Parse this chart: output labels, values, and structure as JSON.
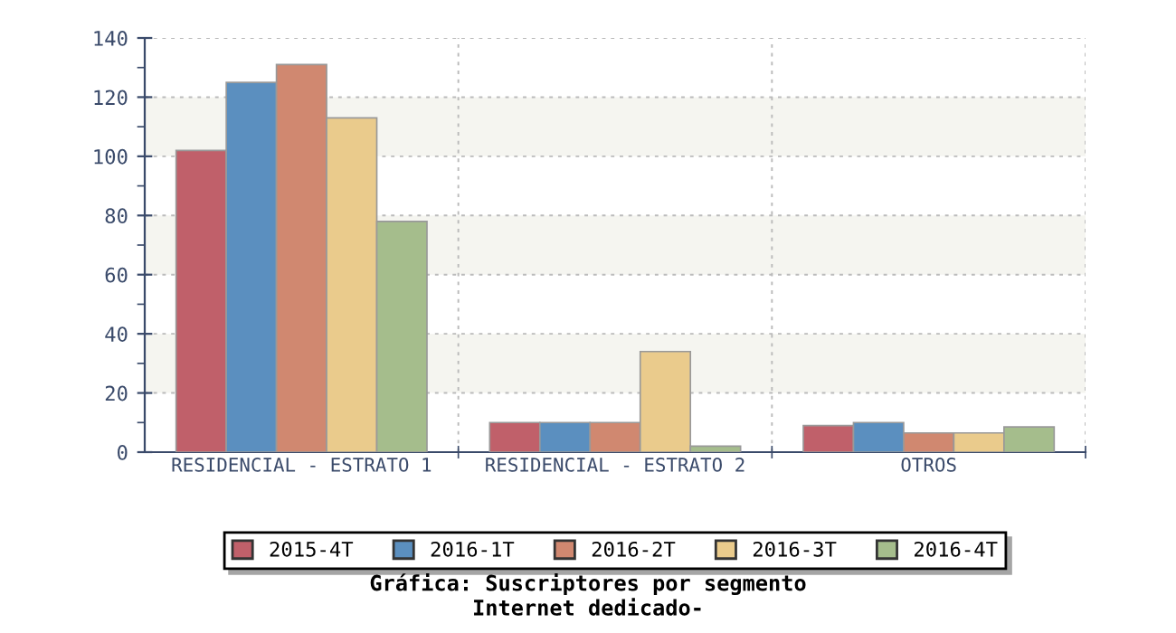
{
  "chart_data": {
    "type": "bar",
    "title": "Gráfica: Suscriptores por segmento",
    "subtitle": "Internet dedicado-",
    "categories": [
      "RESIDENCIAL - ESTRATO 1",
      "RESIDENCIAL - ESTRATO 2",
      "OTROS"
    ],
    "series": [
      {
        "name": "2015-4T",
        "color": "#c0606a",
        "values": [
          102,
          10,
          9
        ]
      },
      {
        "name": "2016-1T",
        "color": "#5b8fbf",
        "values": [
          125,
          10,
          10
        ]
      },
      {
        "name": "2016-2T",
        "color": "#d08870",
        "values": [
          131,
          10,
          6.5
        ]
      },
      {
        "name": "2016-3T",
        "color": "#eacb8c",
        "values": [
          113,
          34,
          6.5
        ]
      },
      {
        "name": "2016-4T",
        "color": "#a5bd8c",
        "values": [
          78,
          2,
          8.5
        ]
      }
    ],
    "ylim": [
      0,
      140
    ],
    "yticks": [
      0,
      20,
      40,
      60,
      80,
      100,
      120,
      140
    ],
    "bands": [
      {
        "axis": "y",
        "from": 20,
        "to": 40,
        "color": "#f5f5f0"
      },
      {
        "axis": "y",
        "from": 60,
        "to": 80,
        "color": "#f5f5f0"
      },
      {
        "axis": "y",
        "from": 100,
        "to": 120,
        "color": "#f5f5f0"
      }
    ],
    "grid": true,
    "legend": "bottom"
  }
}
